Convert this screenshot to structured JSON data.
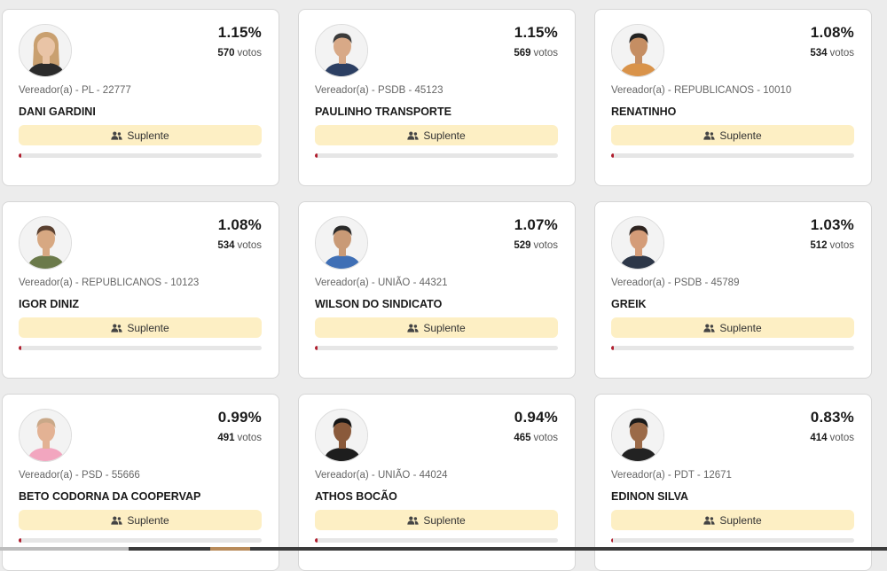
{
  "colors": {
    "accent": "#b01e2e",
    "status_bg": "#fdefc4",
    "bar_track": "#e6e6e6"
  },
  "status_icon": "users-icon",
  "votes_suffix": "votos",
  "cards": [
    {
      "pct": "1.15%",
      "votes": "570",
      "meta": "Vereador(a) - PL - 22777",
      "name": "DANI GARDINI",
      "status": "Suplente",
      "progress_pct": 1.15,
      "photo": {
        "skin": "#e9c4a6",
        "hair": "#c9a070",
        "shirt": "#2b2b2b",
        "hair_long": true
      }
    },
    {
      "pct": "1.15%",
      "votes": "569",
      "meta": "Vereador(a) - PSDB - 45123",
      "name": "PAULINHO TRANSPORTE",
      "status": "Suplente",
      "progress_pct": 1.15,
      "photo": {
        "skin": "#d8a987",
        "hair": "#3b3b3b",
        "shirt": "#2c3f63",
        "hair_long": false
      }
    },
    {
      "pct": "1.08%",
      "votes": "534",
      "meta": "Vereador(a) - REPUBLICANOS - 10010",
      "name": "RENATINHO",
      "status": "Suplente",
      "progress_pct": 1.08,
      "photo": {
        "skin": "#c58e63",
        "hair": "#222222",
        "shirt": "#d9934a",
        "hair_long": false
      }
    },
    {
      "pct": "1.08%",
      "votes": "534",
      "meta": "Vereador(a) - REPUBLICANOS - 10123",
      "name": "IGOR DINIZ",
      "status": "Suplente",
      "progress_pct": 1.08,
      "photo": {
        "skin": "#d7a882",
        "hair": "#5a4030",
        "shirt": "#6b7a4a",
        "hair_long": false
      }
    },
    {
      "pct": "1.07%",
      "votes": "529",
      "meta": "Vereador(a) - UNIÃO - 44321",
      "name": "WILSON DO SINDICATO",
      "status": "Suplente",
      "progress_pct": 1.07,
      "photo": {
        "skin": "#c99a76",
        "hair": "#2a2a2a",
        "shirt": "#3f6fb5",
        "hair_long": false
      }
    },
    {
      "pct": "1.03%",
      "votes": "512",
      "meta": "Vereador(a) - PSDB - 45789",
      "name": "GREIK",
      "status": "Suplente",
      "progress_pct": 1.03,
      "photo": {
        "skin": "#d49c78",
        "hair": "#2e2420",
        "shirt": "#2d3748",
        "hair_long": false
      }
    },
    {
      "pct": "0.99%",
      "votes": "491",
      "meta": "Vereador(a) - PSD - 55666",
      "name": "BETO CODORNA DA COOPERVAP",
      "status": "Suplente",
      "progress_pct": 0.99,
      "photo": {
        "skin": "#e3b294",
        "hair": "#c9a888",
        "shirt": "#f2a6bf",
        "hair_long": false
      }
    },
    {
      "pct": "0.94%",
      "votes": "465",
      "meta": "Vereador(a) - UNIÃO - 44024",
      "name": "ATHOS BOCÃO",
      "status": "Suplente",
      "progress_pct": 0.94,
      "photo": {
        "skin": "#8a5a3b",
        "hair": "#151515",
        "shirt": "#1d1d1d",
        "hair_long": false
      }
    },
    {
      "pct": "0.83%",
      "votes": "414",
      "meta": "Vereador(a) - PDT - 12671",
      "name": "EDINON SILVA",
      "status": "Suplente",
      "progress_pct": 0.83,
      "photo": {
        "skin": "#9b6a48",
        "hair": "#1a1a1a",
        "shirt": "#222222",
        "hair_long": false
      }
    }
  ]
}
